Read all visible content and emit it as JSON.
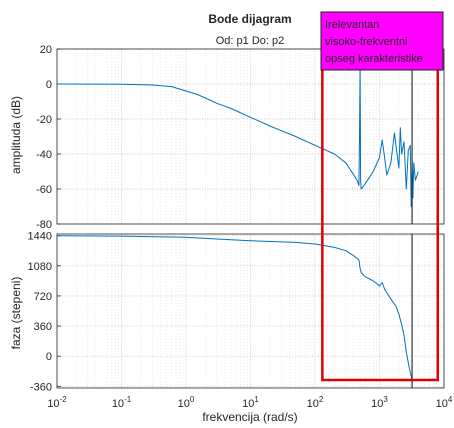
{
  "title": "Bode dijagram",
  "subtitle": "Od: p1  Do: p2",
  "annotation": {
    "lines": [
      "Irelevantan",
      "visoko-frekventni",
      "opseg karakteristike"
    ],
    "fill": "#ff00ff"
  },
  "colors": {
    "trace": "#0072bd",
    "highlight": "#e00000",
    "marker": "#333333",
    "grid": "#c8c8c8"
  },
  "chart_data": [
    {
      "type": "line",
      "title": "Bode dijagram",
      "xlabel": "frekvencija  (rad/s)",
      "ylabel": "amplituda (dB)",
      "xscale": "log",
      "xlim": [
        0.01,
        10000
      ],
      "ylim": [
        -80,
        20
      ],
      "yticks": [
        20,
        0,
        -20,
        -40,
        -60,
        -80
      ],
      "ytick_labels": [
        "20",
        "0",
        "-20",
        "-40",
        "-60",
        "-80"
      ],
      "grid": true,
      "series": [
        {
          "x": [
            0.01,
            0.1,
            0.3,
            0.6,
            1,
            1.5,
            2,
            3,
            5,
            10,
            20,
            50,
            100,
            200,
            300,
            400,
            450,
            480,
            490,
            500,
            510,
            520,
            600,
            800,
            1000,
            1100,
            1200,
            1300,
            1500,
            1700,
            1900,
            2000,
            2100,
            2200,
            2400,
            2600,
            2800,
            3000,
            3100,
            3200,
            3300,
            3400,
            3600,
            4000
          ],
          "y": [
            0,
            -0.1,
            -0.6,
            -1.5,
            -4,
            -6,
            -8,
            -11,
            -14,
            -19,
            -24,
            -30,
            -35,
            -40,
            -45,
            -52,
            -55,
            -58,
            -30,
            12,
            -55,
            -60,
            -57,
            -50,
            -42,
            -32,
            -42,
            -52,
            -45,
            -28,
            -42,
            -48,
            -25,
            -40,
            -33,
            -60,
            -38,
            -35,
            -70,
            -45,
            -65,
            -45,
            -55,
            -50
          ]
        }
      ]
    },
    {
      "type": "line",
      "xlabel": "frekvencija  (rad/s)",
      "ylabel": "faza (stepeni)",
      "xscale": "log",
      "xlim": [
        0.01,
        10000
      ],
      "ylim": [
        -380,
        1460
      ],
      "yticks": [
        1440,
        1080,
        720,
        360,
        0,
        -360
      ],
      "ytick_labels": [
        "1440",
        "1080",
        "720",
        "360",
        "0",
        "-360"
      ],
      "xtick_labels": [
        "-2",
        "-1",
        "0",
        "1",
        "2",
        "3",
        "4"
      ],
      "grid": true,
      "series": [
        {
          "x": [
            0.01,
            0.1,
            1,
            3,
            10,
            50,
            100,
            200,
            300,
            400,
            480,
            500,
            520,
            600,
            800,
            900,
            1000,
            1100,
            1200,
            1300,
            1400,
            1600,
            1800,
            2000,
            2200,
            2400,
            2600,
            2800,
            3000,
            3200
          ],
          "y": [
            1440,
            1435,
            1420,
            1400,
            1380,
            1360,
            1340,
            1300,
            1260,
            1200,
            1150,
            1050,
            1000,
            950,
            900,
            870,
            840,
            880,
            800,
            760,
            720,
            650,
            600,
            500,
            380,
            250,
            50,
            -80,
            -200,
            -280
          ]
        }
      ]
    }
  ],
  "marker_x": 3200,
  "highlight_range": [
    130,
    8000
  ]
}
